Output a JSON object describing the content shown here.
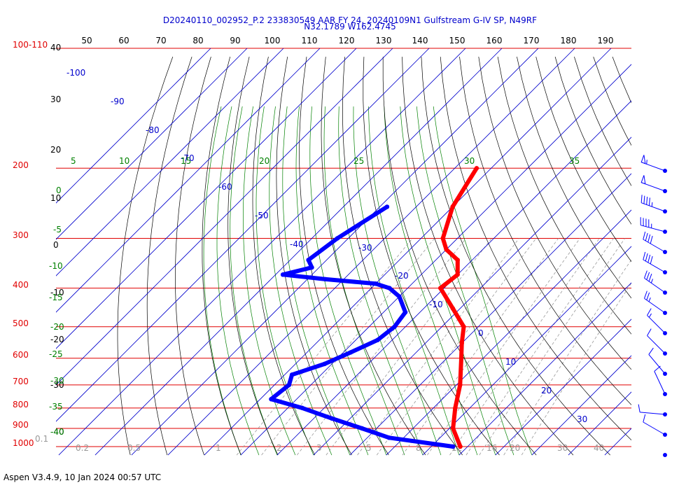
{
  "header": {
    "title_line1": "D20240110_002952_P.2 233830549 AAR FY 24, 20240109N1 Gulfstream G-IV SP, N49RF",
    "title_line2": "N32.1789 W162.4745"
  },
  "footer": {
    "text": "Aspen V3.4.9, 10 Jan 2024  00:57 UTC"
  },
  "colors": {
    "isobar": "#e00000",
    "isotherm": "#0000cc",
    "dry_adiabat": "#000000",
    "moist_adiabat": "#008000",
    "mixing_ratio": "#999999",
    "temperature": "#ff0000",
    "dewpoint": "#0000ff"
  },
  "chart_data": {
    "type": "skew-t",
    "pressure_labels": [
      "100-110",
      "200",
      "300",
      "400",
      "500",
      "600",
      "700",
      "800",
      "900",
      "1000"
    ],
    "pressure_levels": [
      100,
      200,
      300,
      400,
      500,
      600,
      700,
      800,
      900,
      1000
    ],
    "theta_top_labels": [
      "50",
      "60",
      "70",
      "80",
      "90",
      "100",
      "110",
      "120",
      "130",
      "140",
      "150",
      "160",
      "170",
      "180",
      "190"
    ],
    "theta_left_labels": [
      "40",
      "30",
      "20",
      "10",
      "0",
      "-10",
      "-20",
      "-30",
      "-40"
    ],
    "isotherm_labels": [
      "-100",
      "-90",
      "-80",
      "-70",
      "-60",
      "-50",
      "-40",
      "-30",
      "-20",
      "-10",
      "0",
      "10",
      "20",
      "30"
    ],
    "theta_e_top_labels": [
      "5",
      "10",
      "15",
      "20",
      "25",
      "30",
      "35"
    ],
    "theta_e_left_labels": [
      "0",
      "-5",
      "-10",
      "-15",
      "-20",
      "-25",
      "-30",
      "-35",
      "-40"
    ],
    "mixing_ratio_labels": [
      "0.1",
      "0.2",
      "0.5",
      "1",
      "2",
      "3",
      "5",
      "8",
      "12",
      "16",
      "20",
      "30",
      "40"
    ],
    "temperature_profile": [
      {
        "p": 200,
        "t": -54
      },
      {
        "p": 250,
        "t": -50
      },
      {
        "p": 300,
        "t": -44
      },
      {
        "p": 320,
        "t": -40
      },
      {
        "p": 340,
        "t": -34
      },
      {
        "p": 370,
        "t": -30
      },
      {
        "p": 400,
        "t": -31
      },
      {
        "p": 450,
        "t": -22
      },
      {
        "p": 500,
        "t": -14
      },
      {
        "p": 550,
        "t": -10
      },
      {
        "p": 600,
        "t": -6
      },
      {
        "p": 700,
        "t": 1
      },
      {
        "p": 800,
        "t": 6
      },
      {
        "p": 900,
        "t": 11
      },
      {
        "p": 1000,
        "t": 18
      }
    ],
    "dewpoint_profile": [
      {
        "p": 250,
        "t": -68
      },
      {
        "p": 300,
        "t": -73
      },
      {
        "p": 340,
        "t": -75
      },
      {
        "p": 355,
        "t": -72
      },
      {
        "p": 370,
        "t": -78
      },
      {
        "p": 380,
        "t": -65
      },
      {
        "p": 390,
        "t": -50
      },
      {
        "p": 400,
        "t": -45
      },
      {
        "p": 420,
        "t": -40
      },
      {
        "p": 460,
        "t": -34
      },
      {
        "p": 500,
        "t": -33
      },
      {
        "p": 540,
        "t": -34
      },
      {
        "p": 580,
        "t": -38
      },
      {
        "p": 620,
        "t": -42
      },
      {
        "p": 660,
        "t": -48
      },
      {
        "p": 700,
        "t": -46
      },
      {
        "p": 760,
        "t": -47
      },
      {
        "p": 800,
        "t": -36
      },
      {
        "p": 850,
        "t": -25
      },
      {
        "p": 900,
        "t": -14
      },
      {
        "p": 950,
        "t": -4
      },
      {
        "p": 1000,
        "t": 16
      }
    ],
    "wind_barbs": [
      {
        "p": 200,
        "dir": 290,
        "kt": 55
      },
      {
        "p": 235,
        "dir": 290,
        "kt": 50
      },
      {
        "p": 270,
        "dir": 290,
        "kt": 45
      },
      {
        "p": 305,
        "dir": 285,
        "kt": 45
      },
      {
        "p": 340,
        "dir": 300,
        "kt": 40
      },
      {
        "p": 375,
        "dir": 300,
        "kt": 40
      },
      {
        "p": 410,
        "dir": 305,
        "kt": 35
      },
      {
        "p": 445,
        "dir": 305,
        "kt": 25
      },
      {
        "p": 480,
        "dir": 315,
        "kt": 15
      },
      {
        "p": 515,
        "dir": 315,
        "kt": 10
      },
      {
        "p": 550,
        "dir": 320,
        "kt": 10
      },
      {
        "p": 585,
        "dir": 335,
        "kt": 10
      },
      {
        "p": 620,
        "dir": 275,
        "kt": 10
      },
      {
        "p": 655,
        "dir": 300,
        "kt": 10
      },
      {
        "p": 690,
        "dir": 0,
        "kt": 0
      }
    ]
  }
}
